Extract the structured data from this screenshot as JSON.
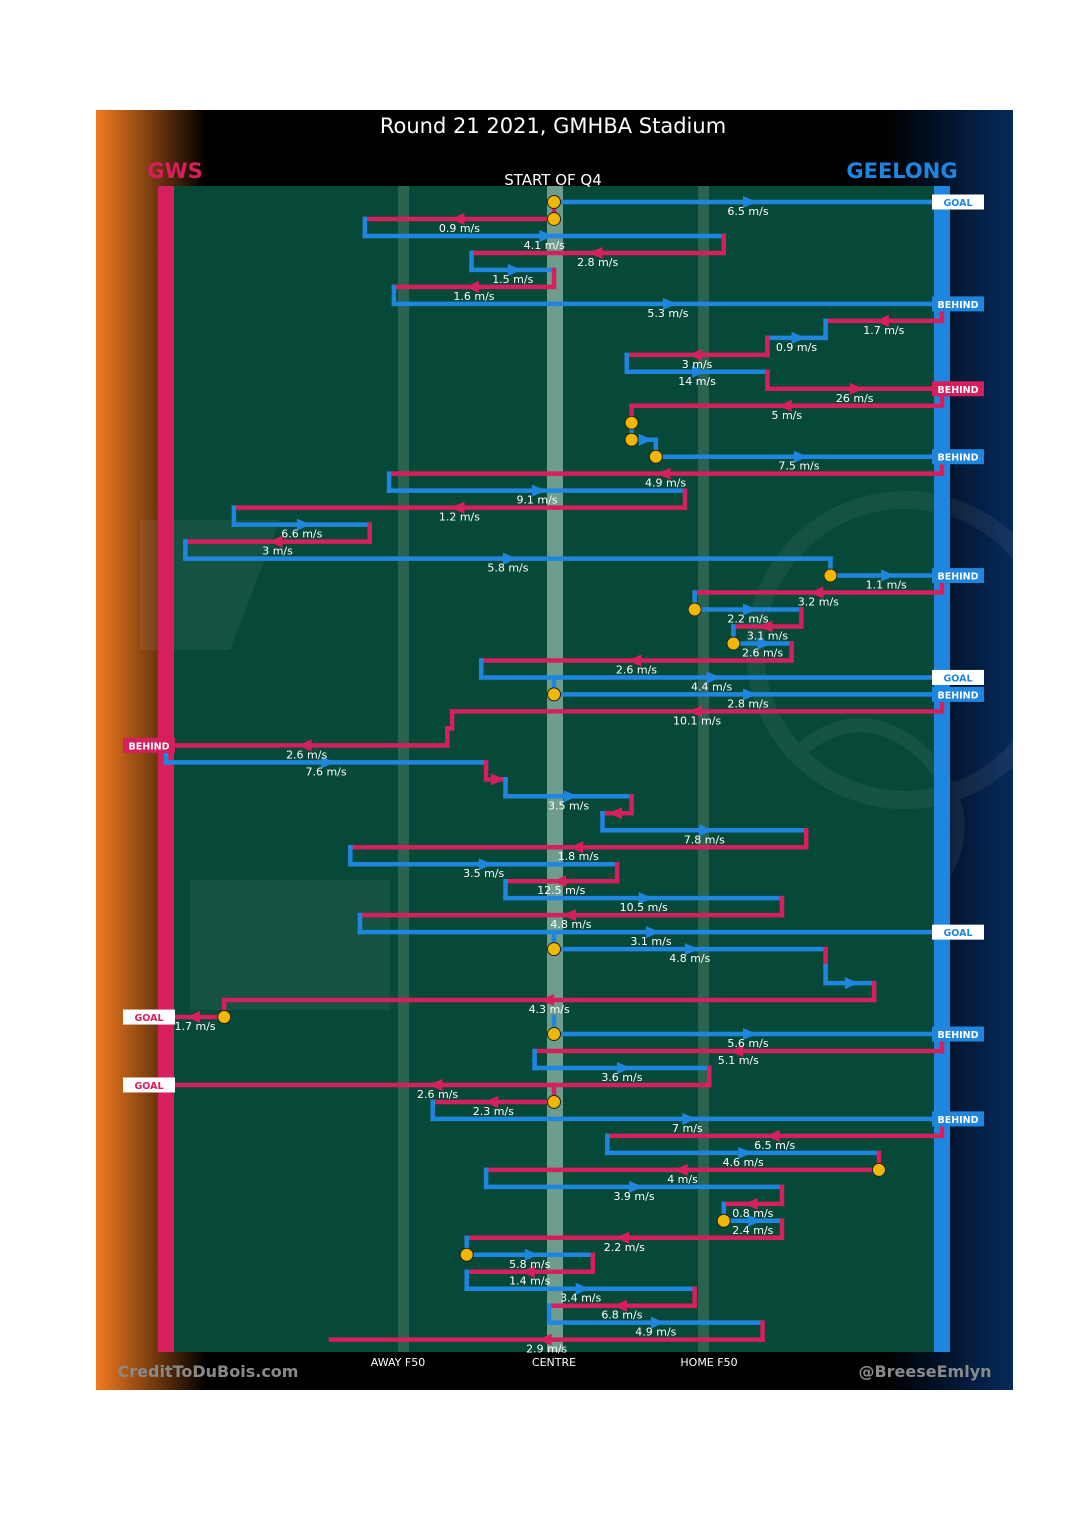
{
  "header": {
    "title": "Round 21 2021, GMHBA Stadium",
    "subtitle": "START OF Q4",
    "away_team": "GWS",
    "home_team": "GEELONG"
  },
  "footer": {
    "credit_left": "CreditToDuBois.com",
    "credit_right": "@BreeseEmlyn"
  },
  "colors": {
    "gws": "#d61f5d",
    "geelong": "#1f86e0",
    "field": "#064938",
    "centre_line": "#6e9c8d",
    "f50_line": "#2b6351",
    "marker": "#f2b705"
  },
  "chart_data": {
    "type": "chain-flow",
    "title": "Round 21 2021, GMHBA Stadium",
    "subtitle": "START OF Q4",
    "x_axis": {
      "units": "metres from GWS goal line",
      "range": [
        0,
        160
      ],
      "ticks": [
        {
          "label": "AWAY F50",
          "x": 50
        },
        {
          "label": "CENTRE",
          "x": 80
        },
        {
          "label": "HOME F50",
          "x": 110
        }
      ]
    },
    "teams": {
      "left": {
        "name": "GWS",
        "color": "#d61f5d"
      },
      "right": {
        "name": "GEELONG",
        "color": "#1f86e0"
      }
    },
    "rows": [
      {
        "team": "GEELONG",
        "start": 80,
        "end": 160,
        "speed": "6.5 m/s",
        "dir": "R",
        "start_marker": true,
        "end_label": "GOAL"
      },
      {
        "team": "GWS",
        "start": 80,
        "end": 41,
        "speed": "0.9 m/s",
        "dir": "L",
        "start_marker": true
      },
      {
        "team": "GEELONG",
        "start": 41,
        "end": 115,
        "speed": "4.1 m/s",
        "dir": "R"
      },
      {
        "team": "GWS",
        "start": 115,
        "end": 63,
        "speed": "2.8 m/s",
        "dir": "L"
      },
      {
        "team": "GEELONG",
        "start": 63,
        "end": 80,
        "speed": "1.5 m/s",
        "dir": "R"
      },
      {
        "team": "GWS",
        "start": 80,
        "end": 47,
        "speed": "1.6 m/s",
        "dir": "L"
      },
      {
        "team": "GEELONG",
        "start": 47,
        "end": 160,
        "speed": "5.3 m/s",
        "dir": "R",
        "end_label": "BEHIND"
      },
      {
        "team": "GWS",
        "start": 160,
        "end": 136,
        "speed": "1.7 m/s",
        "dir": "L"
      },
      {
        "team": "GEELONG",
        "start": 136,
        "end": 124,
        "speed": "0.9 m/s",
        "dir": "R"
      },
      {
        "team": "GWS",
        "start": 124,
        "end": 95,
        "speed": "3 m/s",
        "dir": "L"
      },
      {
        "team": "GEELONG",
        "start": 95,
        "end": 124,
        "speed": "14 m/s",
        "dir": "R"
      },
      {
        "team": "GWS",
        "start": 124,
        "end": 160,
        "speed": "26 m/s",
        "dir": "R",
        "end_label": "BEHIND"
      },
      {
        "team": "GWS",
        "start": 160,
        "end": 96,
        "speed": "5 m/s",
        "dir": "L"
      },
      {
        "team": "GWS",
        "start": 96,
        "end": 96,
        "speed": "",
        "dir": "R",
        "start_marker": true
      },
      {
        "team": "GEELONG",
        "start": 96,
        "end": 101,
        "speed": "",
        "dir": "R",
        "start_marker": true
      },
      {
        "team": "GEELONG",
        "start": 101,
        "end": 160,
        "speed": "7.5 m/s",
        "dir": "R",
        "start_marker": true,
        "end_label": "BEHIND"
      },
      {
        "team": "GWS",
        "start": 160,
        "end": 46,
        "speed": "4.9 m/s",
        "dir": "L"
      },
      {
        "team": "GEELONG",
        "start": 46,
        "end": 107,
        "speed": "9.1 m/s",
        "dir": "R"
      },
      {
        "team": "GWS",
        "start": 107,
        "end": 14,
        "speed": "1.2 m/s",
        "dir": "L"
      },
      {
        "team": "GEELONG",
        "start": 14,
        "end": 42,
        "speed": "6.6 m/s",
        "dir": "R"
      },
      {
        "team": "GWS",
        "start": 42,
        "end": 4,
        "speed": "3 m/s",
        "dir": "L"
      },
      {
        "team": "GEELONG",
        "start": 4,
        "end": 137,
        "speed": "5.8 m/s",
        "dir": "R"
      },
      {
        "team": "GEELONG",
        "start": 137,
        "end": 160,
        "speed": "1.1 m/s",
        "dir": "R",
        "start_marker": true,
        "end_label": "BEHIND"
      },
      {
        "team": "GWS",
        "start": 160,
        "end": 109,
        "speed": "3.2 m/s",
        "dir": "L"
      },
      {
        "team": "GEELONG",
        "start": 109,
        "end": 131,
        "speed": "2.2 m/s",
        "dir": "R",
        "start_marker": true
      },
      {
        "team": "GWS",
        "start": 131,
        "end": 117,
        "speed": "3.1 m/s",
        "dir": "L"
      },
      {
        "team": "GEELONG",
        "start": 117,
        "end": 129,
        "speed": "2.6 m/s",
        "dir": "R",
        "start_marker": true
      },
      {
        "team": "GWS",
        "start": 129,
        "end": 65,
        "speed": "2.6 m/s",
        "dir": "L"
      },
      {
        "team": "GEELONG",
        "start": 65,
        "end": 160,
        "speed": "4.4 m/s",
        "dir": "R",
        "end_label": "GOAL"
      },
      {
        "team": "GEELONG",
        "start": 80,
        "end": 160,
        "speed": "2.8 m/s",
        "dir": "R",
        "start_marker": true,
        "end_label": "BEHIND"
      },
      {
        "team": "GWS",
        "start": 160,
        "end": 59,
        "speed": "10.1 m/s",
        "dir": "L"
      },
      {
        "team": "GWS",
        "start": 59,
        "end": 58,
        "speed": "",
        "dir": "L"
      },
      {
        "team": "GWS",
        "start": 58,
        "end": 0,
        "speed": "2.6 m/s",
        "dir": "L",
        "end_label": "BEHIND"
      },
      {
        "team": "GEELONG",
        "start": 0,
        "end": 66,
        "speed": "7.6 m/s",
        "dir": "R"
      },
      {
        "team": "GWS",
        "start": 66,
        "end": 70,
        "speed": "",
        "dir": "R"
      },
      {
        "team": "GEELONG",
        "start": 70,
        "end": 96,
        "speed": "3.5 m/s",
        "dir": "R"
      },
      {
        "team": "GWS",
        "start": 96,
        "end": 90,
        "speed": "",
        "dir": "L"
      },
      {
        "team": "GEELONG",
        "start": 90,
        "end": 132,
        "speed": "7.8 m/s",
        "dir": "R"
      },
      {
        "team": "GWS",
        "start": 132,
        "end": 38,
        "speed": "1.8 m/s",
        "dir": "L"
      },
      {
        "team": "GEELONG",
        "start": 38,
        "end": 93,
        "speed": "3.5 m/s",
        "dir": "R"
      },
      {
        "team": "GWS",
        "start": 93,
        "end": 70,
        "speed": "12.5 m/s",
        "dir": "L"
      },
      {
        "team": "GEELONG",
        "start": 70,
        "end": 127,
        "speed": "10.5 m/s",
        "dir": "R"
      },
      {
        "team": "GWS",
        "start": 127,
        "end": 40,
        "speed": "4.8 m/s",
        "dir": "L"
      },
      {
        "team": "GEELONG",
        "start": 40,
        "end": 160,
        "speed": "3.1 m/s",
        "dir": "R",
        "end_label": "GOAL"
      },
      {
        "team": "GEELONG",
        "start": 80,
        "end": 136,
        "speed": "4.8 m/s",
        "dir": "R",
        "start_marker": true
      },
      {
        "team": "GWS",
        "start": 136,
        "end": 136,
        "speed": "",
        "dir": "R"
      },
      {
        "team": "GEELONG",
        "start": 136,
        "end": 146,
        "speed": "",
        "dir": "R"
      },
      {
        "team": "GWS",
        "start": 146,
        "end": 12,
        "speed": "4.3 m/s",
        "dir": "L"
      },
      {
        "team": "GWS",
        "start": 12,
        "end": 0,
        "speed": "1.7 m/s",
        "dir": "L",
        "start_marker": true,
        "end_label": "GOAL"
      },
      {
        "team": "GEELONG",
        "start": 80,
        "end": 160,
        "speed": "5.6 m/s",
        "dir": "R",
        "start_marker": true,
        "end_label": "BEHIND"
      },
      {
        "team": "GWS",
        "start": 160,
        "end": 76,
        "speed": "5.1 m/s",
        "dir": "L"
      },
      {
        "team": "GEELONG",
        "start": 76,
        "end": 112,
        "speed": "3.6 m/s",
        "dir": "R"
      },
      {
        "team": "GWS",
        "start": 112,
        "end": 0,
        "speed": "2.6 m/s",
        "dir": "L",
        "end_label": "GOAL"
      },
      {
        "team": "GWS",
        "start": 80,
        "end": 55,
        "speed": "2.3 m/s",
        "dir": "L",
        "start_marker": true
      },
      {
        "team": "GEELONG",
        "start": 55,
        "end": 160,
        "speed": "7 m/s",
        "dir": "R",
        "end_label": "BEHIND"
      },
      {
        "team": "GWS",
        "start": 160,
        "end": 91,
        "speed": "6.5 m/s",
        "dir": "L"
      },
      {
        "team": "GEELONG",
        "start": 91,
        "end": 147,
        "speed": "4.6 m/s",
        "dir": "R"
      },
      {
        "team": "GWS",
        "start": 147,
        "end": 66,
        "speed": "4 m/s",
        "dir": "L",
        "start_marker": true
      },
      {
        "team": "GEELONG",
        "start": 66,
        "end": 127,
        "speed": "3.9 m/s",
        "dir": "R"
      },
      {
        "team": "GWS",
        "start": 127,
        "end": 115,
        "speed": "0.8 m/s",
        "dir": "L"
      },
      {
        "team": "GEELONG",
        "start": 115,
        "end": 127,
        "speed": "2.4 m/s",
        "dir": "R",
        "start_marker": true
      },
      {
        "team": "GWS",
        "start": 127,
        "end": 62,
        "speed": "2.2 m/s",
        "dir": "L"
      },
      {
        "team": "GEELONG",
        "start": 62,
        "end": 88,
        "speed": "5.8 m/s",
        "dir": "R",
        "start_marker": true
      },
      {
        "team": "GWS",
        "start": 88,
        "end": 62,
        "speed": "1.4 m/s",
        "dir": "L"
      },
      {
        "team": "GEELONG",
        "start": 62,
        "end": 109,
        "speed": "3.4 m/s",
        "dir": "R"
      },
      {
        "team": "GWS",
        "start": 109,
        "end": 79,
        "speed": "6.8 m/s",
        "dir": "L"
      },
      {
        "team": "GEELONG",
        "start": 79,
        "end": 123,
        "speed": "4.9 m/s",
        "dir": "R"
      },
      {
        "team": "GWS",
        "start": 123,
        "end": 34,
        "speed": "2.9 m/s",
        "dir": "L"
      }
    ]
  }
}
